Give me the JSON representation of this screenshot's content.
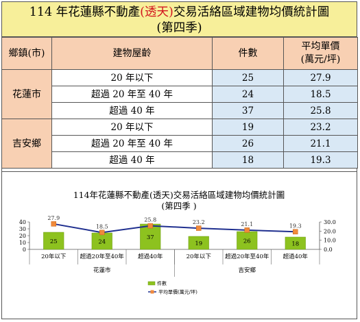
{
  "title": {
    "line1_pre": "114 年花蓮縣不動產",
    "line1_mark": "(透天)",
    "line1_post": "交易活絡區域建物均價統計圖",
    "line2": "(第四季)"
  },
  "table": {
    "headers": {
      "town": "鄉鎮(市)",
      "age": "建物屋齡",
      "count": "件數",
      "price_line1": "平均單價",
      "price_line2": "(萬元/坪)"
    },
    "groups": [
      {
        "town": "花蓮市",
        "rows": [
          {
            "age": "20 年以下",
            "count": "25",
            "price": "27.9"
          },
          {
            "age": "超過 20 年至 40 年",
            "count": "24",
            "price": "18.5"
          },
          {
            "age": "超過 40 年",
            "count": "37",
            "price": "25.8"
          }
        ]
      },
      {
        "town": "吉安鄉",
        "rows": [
          {
            "age": "20 年以下",
            "count": "19",
            "price": "23.2"
          },
          {
            "age": "超過 20 年至 40 年",
            "count": "26",
            "price": "21.1"
          },
          {
            "age": "超過 40 年",
            "count": "18",
            "price": "19.3"
          }
        ]
      }
    ]
  },
  "chart_data": {
    "type": "bar",
    "title": "114年花蓮縣不動產(透天)交易活絡區域建物均價統計圖",
    "subtitle": "(第四季 )",
    "categories": [
      "20年以下",
      "超過20年至40年",
      "超過40年",
      "20年以下",
      "超過20年至40年",
      "超過40年"
    ],
    "groups": [
      "花蓮市",
      "吉安鄉"
    ],
    "series": [
      {
        "name": "件數",
        "type": "bar",
        "axis": "left",
        "values": [
          25,
          24,
          37,
          19,
          26,
          18
        ],
        "color": "#8dc21f"
      },
      {
        "name": "平均單價(萬元/坪)",
        "type": "line",
        "axis": "right",
        "values": [
          27.9,
          18.5,
          25.8,
          23.2,
          21.1,
          19.3
        ],
        "color": "#1f2f8f",
        "marker_color": "#f08a3c"
      }
    ],
    "ylim_left": [
      0,
      40
    ],
    "yticks_left": [
      "0",
      "10",
      "20",
      "30",
      "40"
    ],
    "ylim_right": [
      0,
      30
    ],
    "yticks_right": [
      "0.0",
      "10.0",
      "20.0",
      "30.0"
    ],
    "grid": false,
    "legend_position": "bottom"
  }
}
